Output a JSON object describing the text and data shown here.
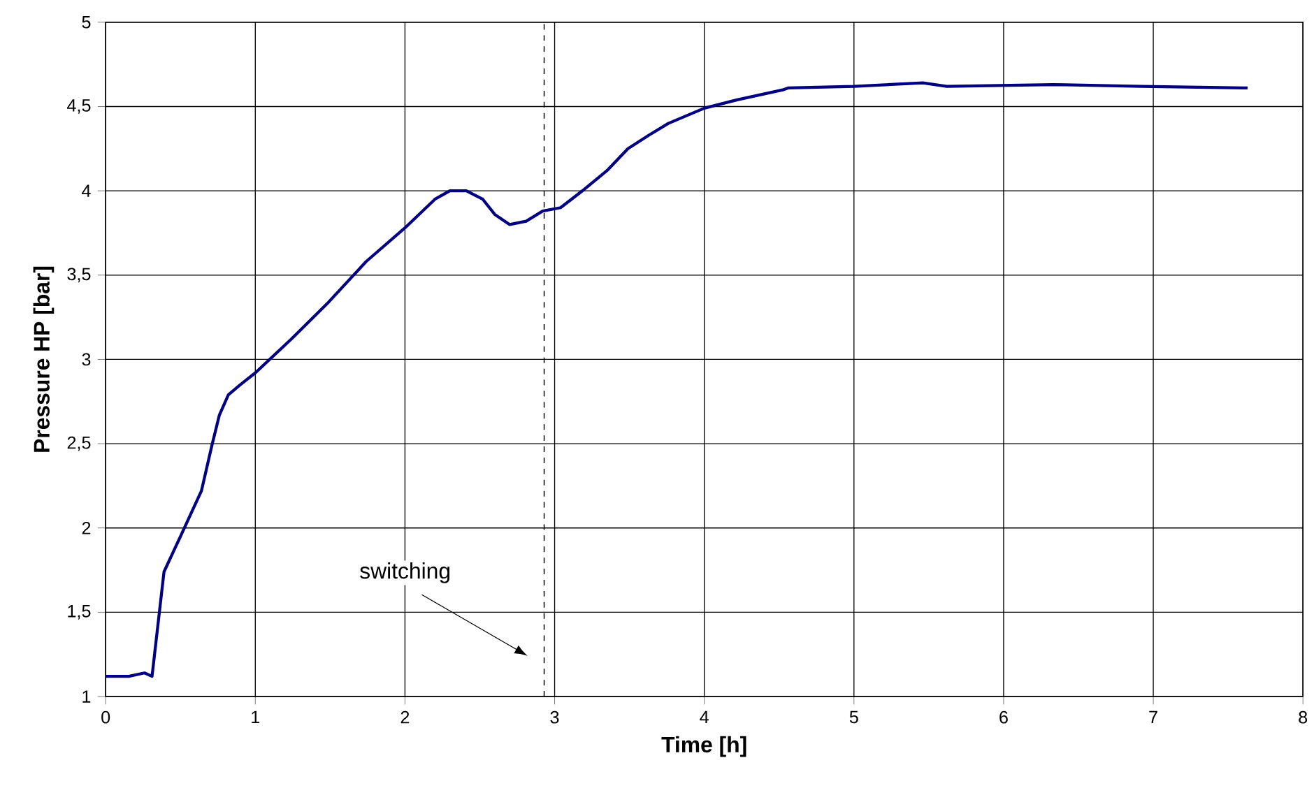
{
  "chart_data": {
    "type": "line",
    "xlabel": "Time [h]",
    "ylabel": "Pressure HP [bar]",
    "xlim": [
      0,
      8
    ],
    "ylim": [
      1,
      5
    ],
    "xticks": [
      0,
      1,
      2,
      3,
      4,
      5,
      6,
      7,
      8
    ],
    "yticks": [
      1,
      {
        "value": 1.5,
        "label": "1,5"
      },
      2,
      {
        "value": 2.5,
        "label": "2,5"
      },
      3,
      {
        "value": 3.5,
        "label": "3,5"
      },
      4,
      {
        "value": 4.5,
        "label": "4,5"
      },
      5
    ],
    "grid": true,
    "marker": "none",
    "line_style": "solid",
    "series": [
      {
        "color": "#000080",
        "x": [
          0,
          0.155,
          0.26,
          0.31,
          0.39,
          0.5,
          0.64,
          0.71,
          0.76,
          0.82,
          0.9,
          1.0,
          1.24,
          1.49,
          1.74,
          2.0,
          2.2,
          2.3,
          2.41,
          2.52,
          2.6,
          2.7,
          2.81,
          2.92,
          3.04,
          3.2,
          3.35,
          3.49,
          3.63,
          3.76,
          4.0,
          4.22,
          4.53,
          4.56,
          5.0,
          5.46,
          5.62,
          6.33,
          6.92,
          7.63
        ],
        "values": [
          1.12,
          1.12,
          1.14,
          1.12,
          1.74,
          1.95,
          2.22,
          2.49,
          2.67,
          2.79,
          2.85,
          2.92,
          3.12,
          3.34,
          3.58,
          3.78,
          3.95,
          4.0,
          4.0,
          3.95,
          3.86,
          3.8,
          3.82,
          3.88,
          3.9,
          4.01,
          4.12,
          4.25,
          4.33,
          4.4,
          4.49,
          4.54,
          4.6,
          4.61,
          4.62,
          4.64,
          4.62,
          4.63,
          4.62,
          4.61
        ]
      }
    ],
    "ref_lines": [
      {
        "axis": "x",
        "value": 2.93,
        "color": "#000000",
        "line_style": "dashed",
        "label": "switching"
      }
    ]
  }
}
